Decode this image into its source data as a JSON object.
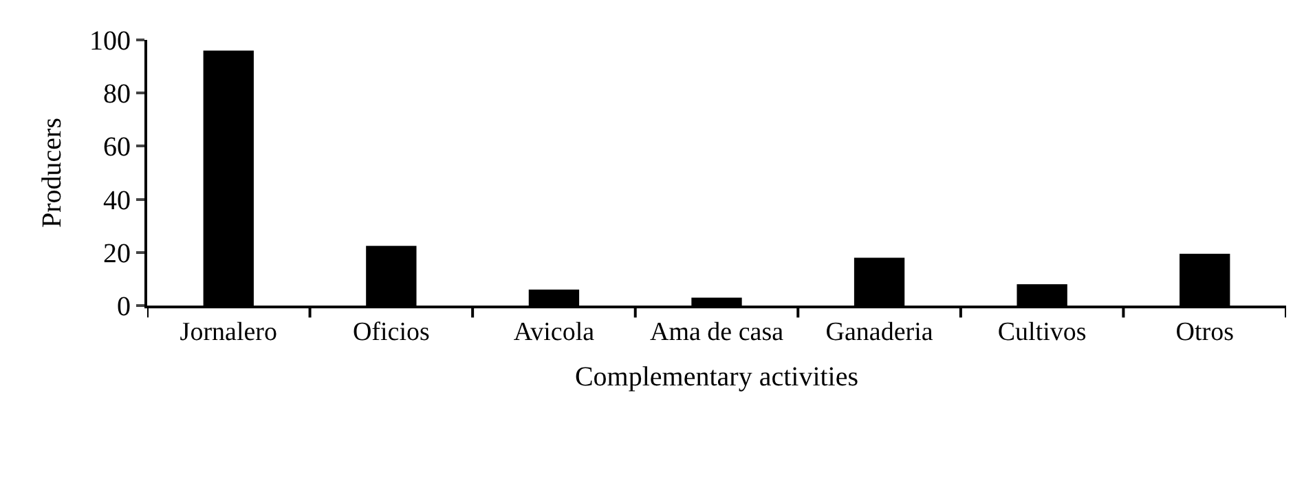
{
  "chart_data": {
    "type": "bar",
    "xlabel": "Complementary activities",
    "ylabel": "Producers",
    "categories": [
      "Jornalero",
      "Oficios",
      "Avicola",
      "Ama de casa",
      "Ganaderia",
      "Cultivos",
      "Otros"
    ],
    "values": [
      96,
      22.5,
      6,
      3,
      18,
      8,
      19.5
    ],
    "color": "#000000",
    "ylim": [
      0,
      100
    ],
    "yticks": [
      0,
      20,
      40,
      60,
      80,
      100
    ]
  }
}
